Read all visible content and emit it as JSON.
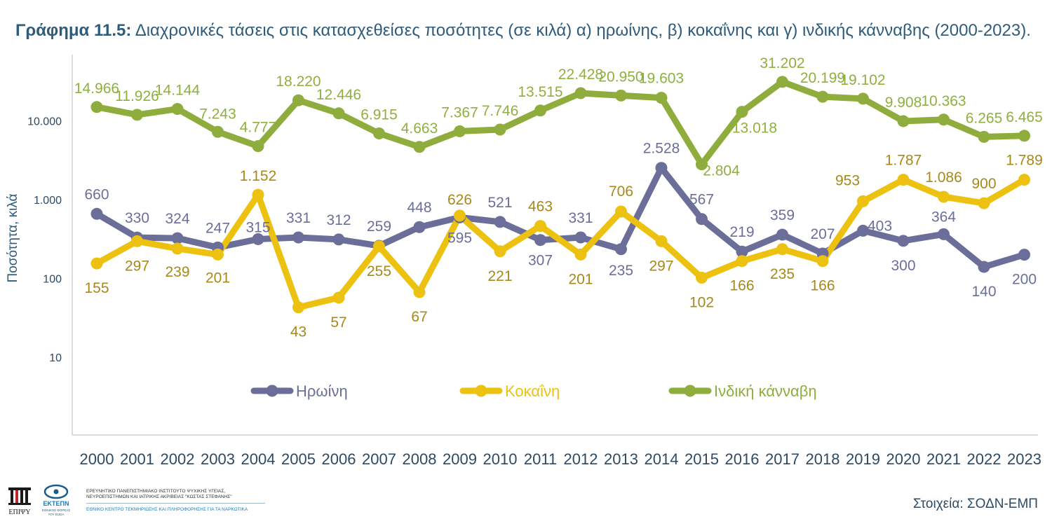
{
  "title": {
    "prefix": "Γράφημα 11.5:",
    "text": "Διαχρονικές τάσεις στις κατασχεθείσες ποσότητες (σε κιλά) α) ηρωίνης, β) κοκαΐνης και γ) ινδικής κάνναβης (2000-2023)."
  },
  "chart_data": {
    "type": "line",
    "yscale": "log",
    "ylim": [
      1,
      100000
    ],
    "ylabel": "Ποσότητα, κιλά",
    "ytick_labels": [
      "10",
      "100",
      "1.000",
      "10.000"
    ],
    "ytick_values": [
      10,
      100,
      1000,
      10000
    ],
    "categories": [
      "2000",
      "2001",
      "2002",
      "2003",
      "2004",
      "2005",
      "2006",
      "2007",
      "2008",
      "2009",
      "2010",
      "2011",
      "2012",
      "2013",
      "2014",
      "2015",
      "2016",
      "2017",
      "2018",
      "2019",
      "2020",
      "2021",
      "2022",
      "2023"
    ],
    "legend_position": "inside-bottom",
    "series": [
      {
        "name": "Ηρωίνη",
        "color": "#6b6e98",
        "label_color": "#6b6e98",
        "values": [
          660,
          330,
          324,
          247,
          315,
          331,
          312,
          259,
          448,
          595,
          521,
          307,
          331,
          235,
          2528,
          567,
          219,
          359,
          207,
          403,
          300,
          364,
          140,
          200
        ],
        "labels": [
          "660",
          "330",
          "324",
          "247",
          "315",
          "331",
          "312",
          "259",
          "448",
          "595",
          "521",
          "307",
          "331",
          "235",
          "2.528",
          "567",
          "219",
          "359",
          "207",
          "403",
          "300",
          "364",
          "140",
          "200"
        ]
      },
      {
        "name": "Κοκαΐνη",
        "color": "#ecc110",
        "label_color": "#a7881a",
        "values": [
          155,
          297,
          239,
          201,
          1152,
          43,
          57,
          255,
          67,
          626,
          221,
          463,
          201,
          706,
          297,
          102,
          166,
          235,
          166,
          953,
          1787,
          1086,
          900,
          1789
        ],
        "labels": [
          "155",
          "297",
          "239",
          "201",
          "1.152",
          "43",
          "57",
          "255",
          "67",
          "626",
          "221",
          "463",
          "201",
          "706",
          "297",
          "102",
          "166",
          "235",
          "166",
          "953",
          "1.787",
          "1.086",
          "900",
          "1.789"
        ]
      },
      {
        "name": "Ινδική κάνναβη",
        "color": "#8fad3c",
        "label_color": "#8fb03e",
        "values": [
          14966,
          11926,
          14144,
          7243,
          4777,
          18220,
          12446,
          6915,
          4663,
          7367,
          7746,
          13515,
          22428,
          20950,
          19603,
          2804,
          13018,
          31202,
          20199,
          19102,
          9908,
          10363,
          6265,
          6465
        ],
        "labels": [
          "14.966",
          "11.926",
          "14.144",
          "7.243",
          "4.777",
          "18.220",
          "12.446",
          "6.915",
          "4.663",
          "7.367",
          "7.746",
          "13.515",
          "22.428",
          "20.950",
          "19.603",
          "2.804",
          "13.018",
          "31.202",
          "20.199",
          "19.102",
          "9.908",
          "10.363",
          "6.265",
          "6.465"
        ]
      }
    ]
  },
  "footer": {
    "org_line1": "ΕΡΕΥΝΗΤΙΚΟ ΠΑΝΕΠΙΣΤΗΜΙΑΚΟ ΙΝΣΤΙΤΟΥΤΟ ΨΥΧΙΚΗΣ ΥΓΕΙΑΣ,",
    "org_line2": "ΝΕΥΡΟΕΠΙΣΤΗΜΩΝ ΚΑΙ ΙΑΤΡΙΚΗΣ ΑΚΡΙΒΕΙΑΣ \"ΚΩΣΤΑΣ ΣΤΕΦΑΝΗΣ\"",
    "org_line3": "ΕΘΝΙΚΟ ΚΕΝΤΡΟ ΤΕΚΜΗΡΙΩΣΗΣ ΚΑΙ ΠΛΗΡΟΦΟΡΗΣΗΣ ΓΙΑ ΤΑ ΝΑΡΚΩΤΙΚΑ",
    "logo1_text": "ΕΠΙΨΥ",
    "logo2_text": "ΕΚΤΕΠΝ",
    "logo2_sub1": "ΕΘΝΙΚΟΣ ΦΟΡΕΑΣ",
    "logo2_sub2": "ΤΟΥ EUDA",
    "source": "Στοιχεία: ΣΟΔΝ-ΕΜΠ"
  }
}
